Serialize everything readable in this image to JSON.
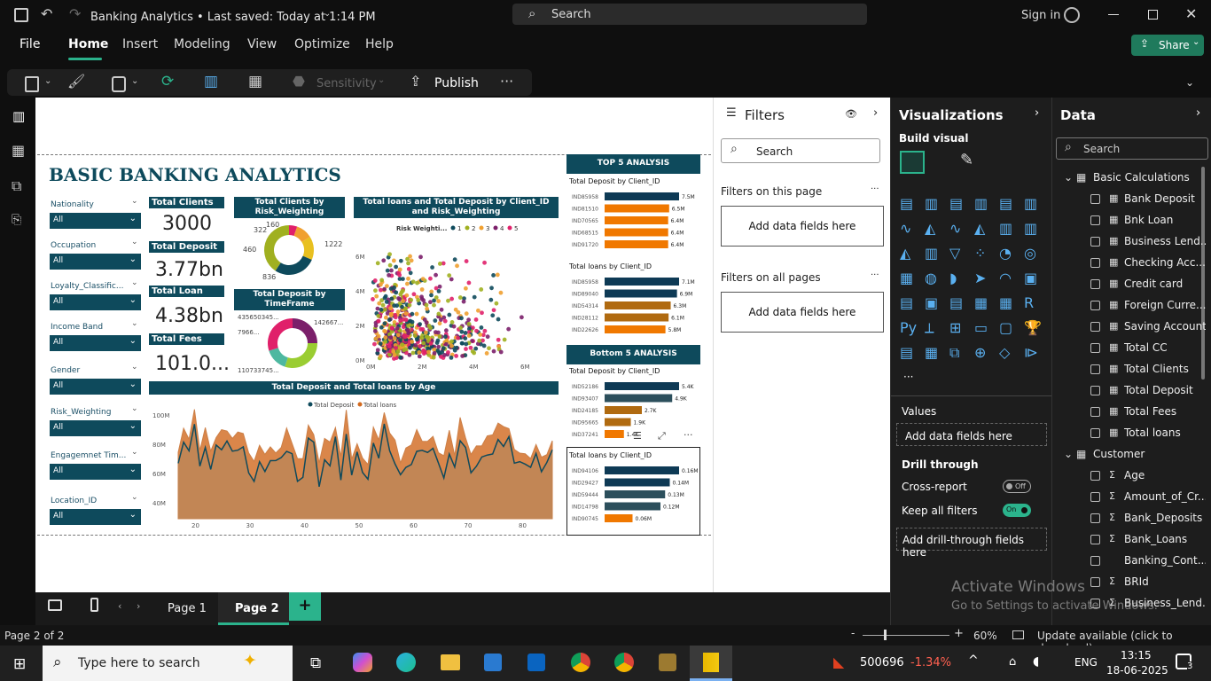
{
  "title_bar": {
    "doc_title": "Banking Analytics • Last saved: Today at 1:14 PM",
    "search_placeholder": "Search",
    "sign_in": "Sign in"
  },
  "menu": {
    "items": [
      "File",
      "Home",
      "Insert",
      "Modeling",
      "View",
      "Optimize",
      "Help"
    ],
    "active": "Home",
    "share": "Share"
  },
  "ribbon": {
    "sensitivity": "Sensitivity",
    "publish": "Publish",
    "more": "···"
  },
  "report": {
    "title": "BASIC BANKING ANALYTICS",
    "slicers": [
      {
        "label": "Nationality",
        "value": "All"
      },
      {
        "label": "Occupation",
        "value": "All"
      },
      {
        "label": "Loyalty_Classific...",
        "value": "All"
      },
      {
        "label": "Income Band",
        "value": "All"
      },
      {
        "label": "Gender",
        "value": "All"
      },
      {
        "label": "Risk_Weighting",
        "value": "All"
      },
      {
        "label": "Engagemnet Tim...",
        "value": "All"
      },
      {
        "label": "Location_ID",
        "value": "All"
      }
    ],
    "kpis": [
      {
        "title": "Total Clients",
        "value": "3000"
      },
      {
        "title": "Total Deposit",
        "value": "3.77bn"
      },
      {
        "title": "Total Loan",
        "value": "4.38bn"
      },
      {
        "title": "Total Fees",
        "value": "101.0..."
      }
    ],
    "donut1": {
      "title": "Total Clients by Risk_Weighting",
      "labels": [
        "160",
        "322",
        "460",
        "836",
        "1222"
      ],
      "values": [
        160,
        322,
        460,
        836,
        1222
      ],
      "colors": [
        "#e0206a",
        "#f0a030",
        "#e8c020",
        "#0e4a5c",
        "#a0b020"
      ]
    },
    "donut2": {
      "title": "Total Deposit by TimeFrame",
      "labels": [
        "435650345...",
        "142667...",
        "7966...",
        "110733745..."
      ],
      "values": [
        0.25,
        0.3,
        0.15,
        0.3
      ],
      "colors": [
        "#7b1f6a",
        "#9acd32",
        "#4db8a0",
        "#e0206a",
        "#f0e030"
      ]
    },
    "scatter": {
      "title": "Total loans and Total Deposit by Client_ID and Risk_Weighting",
      "legend_title": "Risk Weighti...",
      "legend": [
        "1",
        "2",
        "3",
        "4",
        "5"
      ],
      "legend_colors": [
        "#0e4a5c",
        "#a0b020",
        "#f0a030",
        "#7b1f6a",
        "#e0206a"
      ],
      "y_ticks": [
        "6M",
        "4M",
        "2M",
        "0M"
      ],
      "x_ticks": [
        "0M",
        "2M",
        "4M",
        "6M"
      ]
    },
    "area": {
      "title": "Total Deposit and Total loans by Age",
      "legend": [
        "Total Deposit",
        "Total loans"
      ],
      "y_ticks": [
        "100M",
        "80M",
        "60M",
        "40M"
      ],
      "x_ticks": [
        "20",
        "30",
        "40",
        "50",
        "60",
        "70",
        "80"
      ]
    },
    "top5": {
      "title": "TOP 5 ANALYSIS",
      "deposit": {
        "subtitle": "Total Deposit by Client_ID",
        "ids": [
          "IND85958",
          "IND81510",
          "IND70565",
          "IND68515",
          "IND91720"
        ],
        "values": [
          7.5,
          6.5,
          6.4,
          6.4,
          6.4
        ],
        "labels": [
          "7.5M",
          "6.5M",
          "6.4M",
          "6.4M",
          "6.4M"
        ]
      },
      "loans": {
        "subtitle": "Total loans by Client_ID",
        "ids": [
          "IND85958",
          "IND89040",
          "IND54314",
          "IND28112",
          "IND22626"
        ],
        "values": [
          7.1,
          6.9,
          6.3,
          6.1,
          5.8
        ],
        "labels": [
          "7.1M",
          "6.9M",
          "6.3M",
          "6.1M",
          "5.8M"
        ]
      }
    },
    "bottom5": {
      "title": "Bottom 5 ANALYSIS",
      "deposit": {
        "subtitle": "Total Deposit by Client_ID",
        "ids": [
          "IND52186",
          "IND93407",
          "IND24185",
          "IND95665",
          "IND37241"
        ],
        "values": [
          5.4,
          4.9,
          2.7,
          1.9,
          1.4
        ],
        "labels": [
          "5.4K",
          "4.9K",
          "2.7K",
          "1.9K",
          "1.4K"
        ]
      },
      "loans": {
        "subtitle": "Total loans by Client_ID",
        "ids": [
          "IND94106",
          "IND29427",
          "IND59444",
          "IND14798",
          "IND90745"
        ],
        "values": [
          0.16,
          0.14,
          0.13,
          0.12,
          0.06
        ],
        "labels": [
          "0.16M",
          "0.14M",
          "0.13M",
          "0.12M",
          "0.06M"
        ]
      }
    }
  },
  "pages": {
    "tabs": [
      "Page 1",
      "Page 2"
    ],
    "active": "Page 2",
    "add": "+"
  },
  "filters": {
    "title": "Filters",
    "search": "Search",
    "this_page": "Filters on this page",
    "all_pages": "Filters on all pages",
    "add_fields": "Add data fields here"
  },
  "viz": {
    "title": "Visualizations",
    "build": "Build visual",
    "values": "Values",
    "add_fields": "Add data fields here",
    "drill": "Drill through",
    "cross": "Cross-report",
    "cross_state": "Off",
    "keep": "Keep all filters",
    "keep_state": "On",
    "add_drill": "Add drill-through fields here"
  },
  "data": {
    "title": "Data",
    "search": "Search",
    "groups": [
      {
        "name": "Basic Calculations",
        "fields": [
          "Bank Deposit",
          "Bnk Loan",
          "Business Lend...",
          "Checking Acc...",
          "Credit card",
          "Foreign Curre...",
          "Saving Account",
          "Total CC",
          "Total Clients",
          "Total Deposit",
          "Total Fees",
          "Total loans"
        ]
      },
      {
        "name": "Customer",
        "fields": [
          "Age",
          "Amount_of_Cr...",
          "Bank_Deposits",
          "Bank_Loans",
          "Banking_Cont...",
          "BRId",
          "Business_Lend..."
        ]
      }
    ]
  },
  "status": {
    "page": "Page 2 of 2",
    "zoom": "60%",
    "update": "Update available (click to download)"
  },
  "watermark": {
    "line1": "Activate Windows",
    "line2": "Go to Settings to activate Windows."
  },
  "taskbar": {
    "search": "Type here to search",
    "stock_value": "500696",
    "stock_change": "-1.34%",
    "lang": "ENG",
    "time": "13:15",
    "date": "18-06-2025",
    "notif": "3"
  }
}
